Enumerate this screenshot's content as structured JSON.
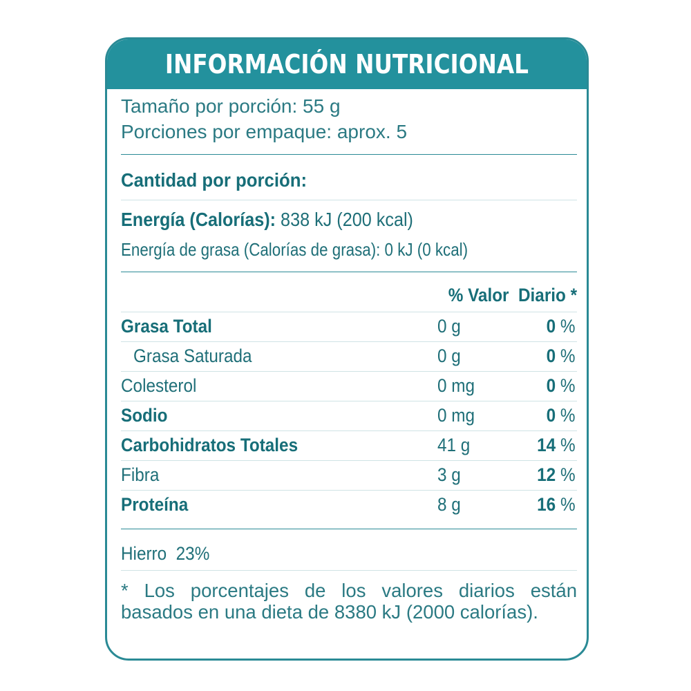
{
  "title": "INFORMACIÓN NUTRICIONAL",
  "serving": {
    "size": "Tamaño por porción: 55 g",
    "per_package": "Porciones por empaque: aprox. 5"
  },
  "amount_heading": "Cantidad por porción:",
  "energy": {
    "label": "Energía (Calorías):",
    "value": " 838 kJ (200 kcal)",
    "fat_energy": "Energía de grasa (Calorías de grasa): 0 kJ (0 kcal)"
  },
  "dv_header": "% Valor  Diario *",
  "nutrients": [
    {
      "name": "Grasa Total",
      "amount": "0 g",
      "pct_num": "0",
      "pct_sign": " %",
      "bold": true
    },
    {
      "name": "Grasa Saturada",
      "amount": "0 g",
      "pct_num": "0",
      "pct_sign": " %",
      "bold": false
    },
    {
      "name": "Colesterol",
      "amount": "0 mg",
      "pct_num": "0",
      "pct_sign": " %",
      "bold": false
    },
    {
      "name": "Sodio",
      "amount": "0 mg",
      "pct_num": "0",
      "pct_sign": " %",
      "bold": true
    },
    {
      "name": "Carbohidratos Totales",
      "amount": "41 g",
      "pct_num": "14",
      "pct_sign": " %",
      "bold": true
    },
    {
      "name": "Fibra",
      "amount": "3 g",
      "pct_num": "12",
      "pct_sign": " %",
      "bold": false
    },
    {
      "name": "Proteína",
      "amount": "8 g",
      "pct_num": "16",
      "pct_sign": " %",
      "bold": true
    }
  ],
  "iron": "Hierro  23%",
  "footnote": "* Los porcentajes de los valores diarios están basados en una dieta de 8380 kJ (2000 calorías).",
  "colors": {
    "header_bg": "#23919d",
    "border": "#2a8a95",
    "text": "#1f6f78"
  }
}
